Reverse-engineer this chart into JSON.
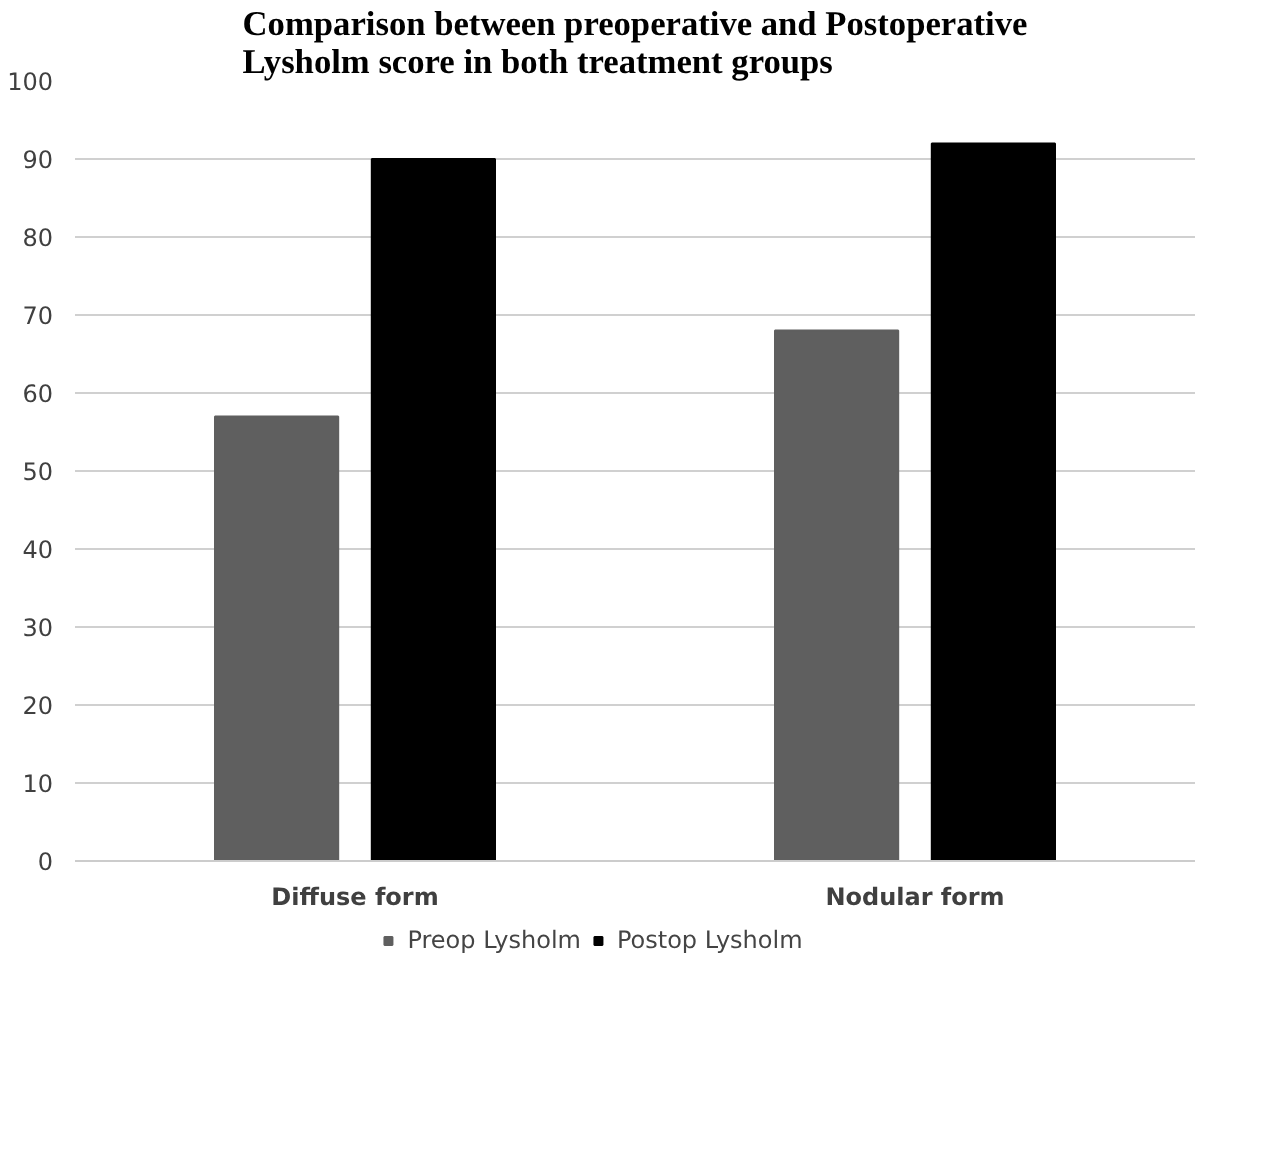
{
  "chart_data": {
    "type": "bar",
    "title": "Comparison between preoperative and Postoperative Lysholm score in both treatment groups",
    "categories": [
      "Diffuse form",
      "Nodular form"
    ],
    "series": [
      {
        "name": "Preop Lysholm",
        "color": "#5f5f5f",
        "values": [
          57,
          68
        ]
      },
      {
        "name": "Postop Lysholm",
        "color": "#000000",
        "values": [
          90,
          92
        ]
      }
    ],
    "ylim": [
      0,
      100
    ],
    "yticks": [
      0,
      10,
      20,
      30,
      40,
      50,
      60,
      70,
      80,
      90,
      100
    ],
    "grid": "y",
    "legend": "bottom"
  }
}
